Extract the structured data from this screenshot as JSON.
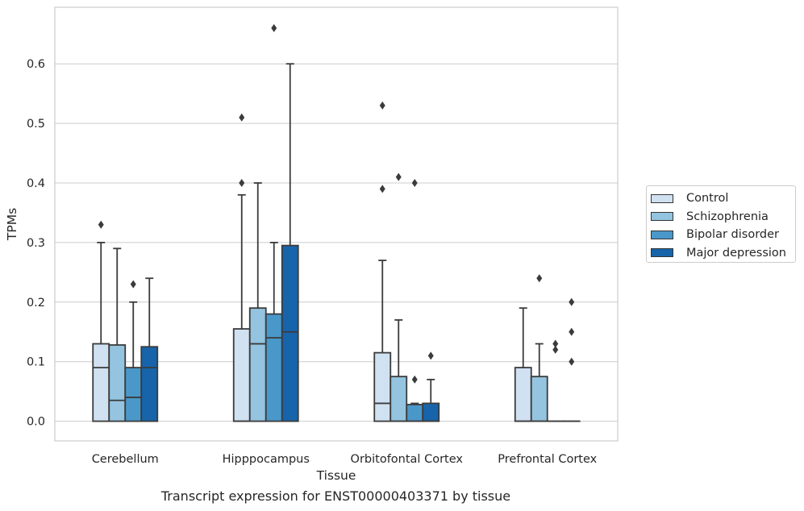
{
  "chart_data": {
    "type": "box",
    "caption": "Transcript expression for ENST00000403371 by tissue",
    "xlabel": "Tissue",
    "ylabel": "TPMs",
    "ylim": [
      -0.033,
      0.695
    ],
    "yticks": [
      "0.0",
      "0.1",
      "0.2",
      "0.3",
      "0.4",
      "0.5",
      "0.6"
    ],
    "grid": "horizontal",
    "legend_placement": "right",
    "categories": [
      "Cerebellum",
      "Hipppocampus",
      "Orbitofontal Cortex",
      "Prefrontal Cortex"
    ],
    "series": [
      {
        "name": "Control",
        "color": "#d0e1f2",
        "boxes": [
          {
            "q1": 0.0,
            "median": 0.09,
            "q3": 0.13,
            "whisker_low": 0.0,
            "whisker_high": 0.3,
            "outliers": [
              0.33
            ]
          },
          {
            "q1": 0.0,
            "median": 0.0,
            "q3": 0.155,
            "whisker_low": 0.0,
            "whisker_high": 0.38,
            "outliers": [
              0.4,
              0.51
            ]
          },
          {
            "q1": 0.0,
            "median": 0.03,
            "q3": 0.115,
            "whisker_low": 0.0,
            "whisker_high": 0.27,
            "outliers": [
              0.39,
              0.53
            ]
          },
          {
            "q1": 0.0,
            "median": 0.0,
            "q3": 0.09,
            "whisker_low": 0.0,
            "whisker_high": 0.19,
            "outliers": []
          }
        ]
      },
      {
        "name": "Schizophrenia",
        "color": "#94c4df",
        "boxes": [
          {
            "q1": 0.0,
            "median": 0.035,
            "q3": 0.128,
            "whisker_low": 0.0,
            "whisker_high": 0.29,
            "outliers": []
          },
          {
            "q1": 0.0,
            "median": 0.13,
            "q3": 0.19,
            "whisker_low": 0.0,
            "whisker_high": 0.4,
            "outliers": []
          },
          {
            "q1": 0.0,
            "median": 0.0,
            "q3": 0.075,
            "whisker_low": 0.0,
            "whisker_high": 0.17,
            "outliers": [
              0.41
            ]
          },
          {
            "q1": 0.0,
            "median": 0.0,
            "q3": 0.075,
            "whisker_low": 0.0,
            "whisker_high": 0.13,
            "outliers": [
              0.24
            ]
          }
        ]
      },
      {
        "name": "Bipolar disorder",
        "color": "#4a98c9",
        "boxes": [
          {
            "q1": 0.0,
            "median": 0.04,
            "q3": 0.09,
            "whisker_low": 0.0,
            "whisker_high": 0.2,
            "outliers": [
              0.23
            ]
          },
          {
            "q1": 0.0,
            "median": 0.14,
            "q3": 0.18,
            "whisker_low": 0.0,
            "whisker_high": 0.3,
            "outliers": [
              0.66
            ]
          },
          {
            "q1": 0.0,
            "median": 0.0,
            "q3": 0.028,
            "whisker_low": 0.0,
            "whisker_high": 0.03,
            "outliers": [
              0.07,
              0.4
            ]
          },
          {
            "q1": 0.0,
            "median": 0.0,
            "q3": 0.0,
            "whisker_low": 0.0,
            "whisker_high": 0.0,
            "outliers": [
              0.12,
              0.13
            ]
          }
        ]
      },
      {
        "name": "Major depression",
        "color": "#1764ab",
        "boxes": [
          {
            "q1": 0.0,
            "median": 0.09,
            "q3": 0.125,
            "whisker_low": 0.0,
            "whisker_high": 0.24,
            "outliers": []
          },
          {
            "q1": 0.0,
            "median": 0.15,
            "q3": 0.295,
            "whisker_low": 0.0,
            "whisker_high": 0.6,
            "outliers": []
          },
          {
            "q1": 0.0,
            "median": 0.0,
            "q3": 0.03,
            "whisker_low": 0.0,
            "whisker_high": 0.07,
            "outliers": [
              0.11
            ]
          },
          {
            "q1": 0.0,
            "median": 0.0,
            "q3": 0.0,
            "whisker_low": 0.0,
            "whisker_high": 0.0,
            "outliers": [
              0.1,
              0.15,
              0.2
            ]
          }
        ]
      }
    ]
  }
}
